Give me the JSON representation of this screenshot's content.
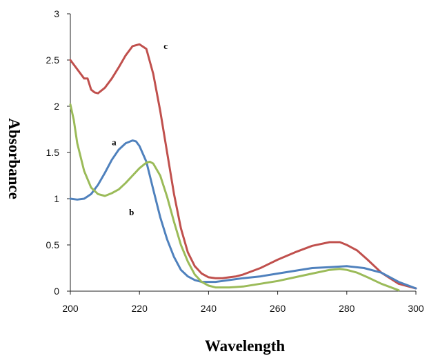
{
  "chart_data": {
    "type": "line",
    "title": "",
    "xlabel": "Wavelength",
    "ylabel": "Absorbance",
    "xlim": [
      200,
      300
    ],
    "ylim": [
      0,
      3
    ],
    "x_ticks": [
      200,
      220,
      240,
      260,
      280,
      300
    ],
    "y_ticks": [
      0,
      0.5,
      1,
      1.5,
      2,
      2.5,
      3
    ],
    "y_tick_labels": [
      "0",
      "0.5",
      "1",
      "1.5",
      "2",
      "2.5",
      "3"
    ],
    "grid": false,
    "legend": "none",
    "series": [
      {
        "label": "c",
        "color": "#c0504d",
        "x": [
          200,
          202,
          204,
          205,
          206,
          207,
          208,
          210,
          212,
          214,
          216,
          218,
          220,
          222,
          224,
          226,
          228,
          230,
          232,
          234,
          236,
          238,
          240,
          242,
          244,
          246,
          248,
          250,
          255,
          260,
          265,
          270,
          275,
          278,
          280,
          283,
          286,
          290,
          295,
          300
        ],
        "y": [
          2.5,
          2.4,
          2.3,
          2.3,
          2.18,
          2.15,
          2.14,
          2.2,
          2.3,
          2.42,
          2.55,
          2.65,
          2.67,
          2.62,
          2.35,
          1.95,
          1.5,
          1.05,
          0.68,
          0.42,
          0.27,
          0.19,
          0.15,
          0.14,
          0.14,
          0.15,
          0.16,
          0.18,
          0.25,
          0.34,
          0.42,
          0.49,
          0.53,
          0.53,
          0.5,
          0.44,
          0.34,
          0.2,
          0.08,
          0.03
        ]
      },
      {
        "label": "a",
        "color": "#4f81bd",
        "x": [
          200,
          202,
          204,
          206,
          208,
          210,
          212,
          214,
          216,
          218,
          219,
          220,
          222,
          224,
          226,
          228,
          230,
          232,
          234,
          236,
          238,
          240,
          242,
          244,
          246,
          250,
          255,
          260,
          265,
          270,
          275,
          280,
          285,
          290,
          295,
          300
        ],
        "y": [
          1.0,
          0.99,
          1.0,
          1.05,
          1.15,
          1.28,
          1.42,
          1.53,
          1.6,
          1.63,
          1.62,
          1.57,
          1.4,
          1.1,
          0.8,
          0.56,
          0.37,
          0.23,
          0.16,
          0.12,
          0.1,
          0.1,
          0.1,
          0.11,
          0.12,
          0.14,
          0.16,
          0.19,
          0.22,
          0.25,
          0.26,
          0.27,
          0.25,
          0.2,
          0.1,
          0.03
        ]
      },
      {
        "label": "b",
        "color": "#9bbb59",
        "x": [
          200,
          201,
          202,
          204,
          206,
          208,
          210,
          212,
          214,
          216,
          218,
          220,
          222,
          223,
          224,
          226,
          228,
          230,
          232,
          234,
          236,
          238,
          240,
          242,
          244,
          246,
          248,
          250,
          255,
          260,
          265,
          270,
          275,
          278,
          280,
          283,
          286,
          290,
          295
        ],
        "y": [
          2.02,
          1.85,
          1.6,
          1.3,
          1.12,
          1.05,
          1.03,
          1.06,
          1.1,
          1.17,
          1.25,
          1.33,
          1.39,
          1.4,
          1.38,
          1.25,
          1.02,
          0.75,
          0.5,
          0.32,
          0.18,
          0.1,
          0.06,
          0.04,
          0.04,
          0.04,
          0.045,
          0.05,
          0.08,
          0.11,
          0.15,
          0.19,
          0.23,
          0.24,
          0.23,
          0.2,
          0.15,
          0.08,
          0.01
        ]
      }
    ]
  }
}
